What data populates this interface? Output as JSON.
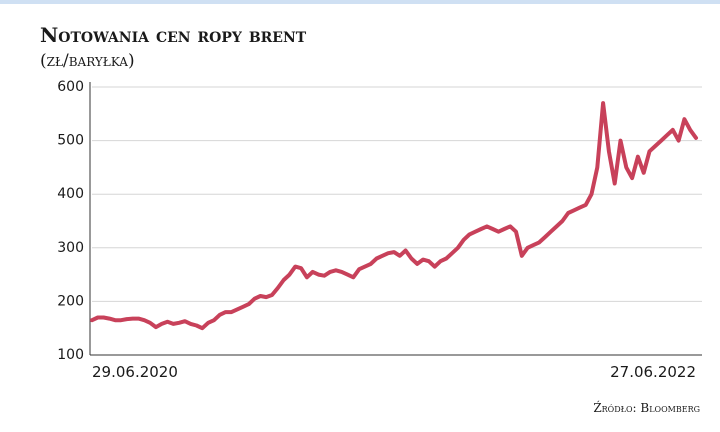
{
  "chart_data": {
    "type": "line",
    "title": "Notowania cen ropy brent",
    "subtitle": "(zł/baryłka)",
    "source": "Źródło: Bloomberg",
    "categories": [
      "29.06.2020",
      null,
      null,
      null,
      null,
      null,
      null,
      null,
      null,
      null,
      null,
      null,
      null,
      null,
      null,
      null,
      null,
      null,
      null,
      null,
      null,
      null,
      null,
      null,
      null,
      null,
      null,
      null,
      null,
      null,
      null,
      null,
      null,
      null,
      null,
      null,
      null,
      null,
      null,
      null,
      null,
      null,
      null,
      null,
      null,
      null,
      null,
      null,
      null,
      null,
      null,
      null,
      null,
      null,
      null,
      null,
      null,
      null,
      null,
      null,
      null,
      null,
      null,
      null,
      null,
      null,
      null,
      null,
      null,
      null,
      null,
      null,
      null,
      null,
      null,
      null,
      null,
      null,
      null,
      null,
      null,
      null,
      null,
      null,
      null,
      null,
      null,
      null,
      null,
      null,
      null,
      null,
      null,
      null,
      null,
      null,
      null,
      null,
      null,
      null,
      null,
      null,
      null,
      null,
      "27.06.2022"
    ],
    "series": [
      {
        "name": "Brent",
        "color": "#c8415a",
        "values": [
          165,
          170,
          170,
          168,
          165,
          165,
          167,
          168,
          168,
          165,
          160,
          152,
          158,
          162,
          158,
          160,
          163,
          158,
          155,
          150,
          160,
          165,
          175,
          180,
          180,
          185,
          190,
          195,
          205,
          210,
          208,
          212,
          225,
          240,
          250,
          265,
          262,
          245,
          255,
          250,
          248,
          255,
          258,
          255,
          250,
          245,
          260,
          265,
          270,
          280,
          285,
          290,
          292,
          285,
          295,
          280,
          270,
          278,
          275,
          265,
          275,
          280,
          290,
          300,
          315,
          325,
          330,
          335,
          340,
          335,
          330,
          335,
          340,
          330,
          285,
          300,
          305,
          310,
          320,
          330,
          340,
          350,
          365,
          370,
          375,
          380,
          400,
          450,
          570,
          480,
          420,
          500,
          450,
          430,
          470,
          440,
          480,
          490,
          500,
          510,
          520,
          500,
          540,
          520,
          505
        ]
      }
    ],
    "ylim": [
      100,
      600
    ],
    "yticks": [
      100,
      200,
      300,
      400,
      500,
      600
    ],
    "grid": true
  }
}
